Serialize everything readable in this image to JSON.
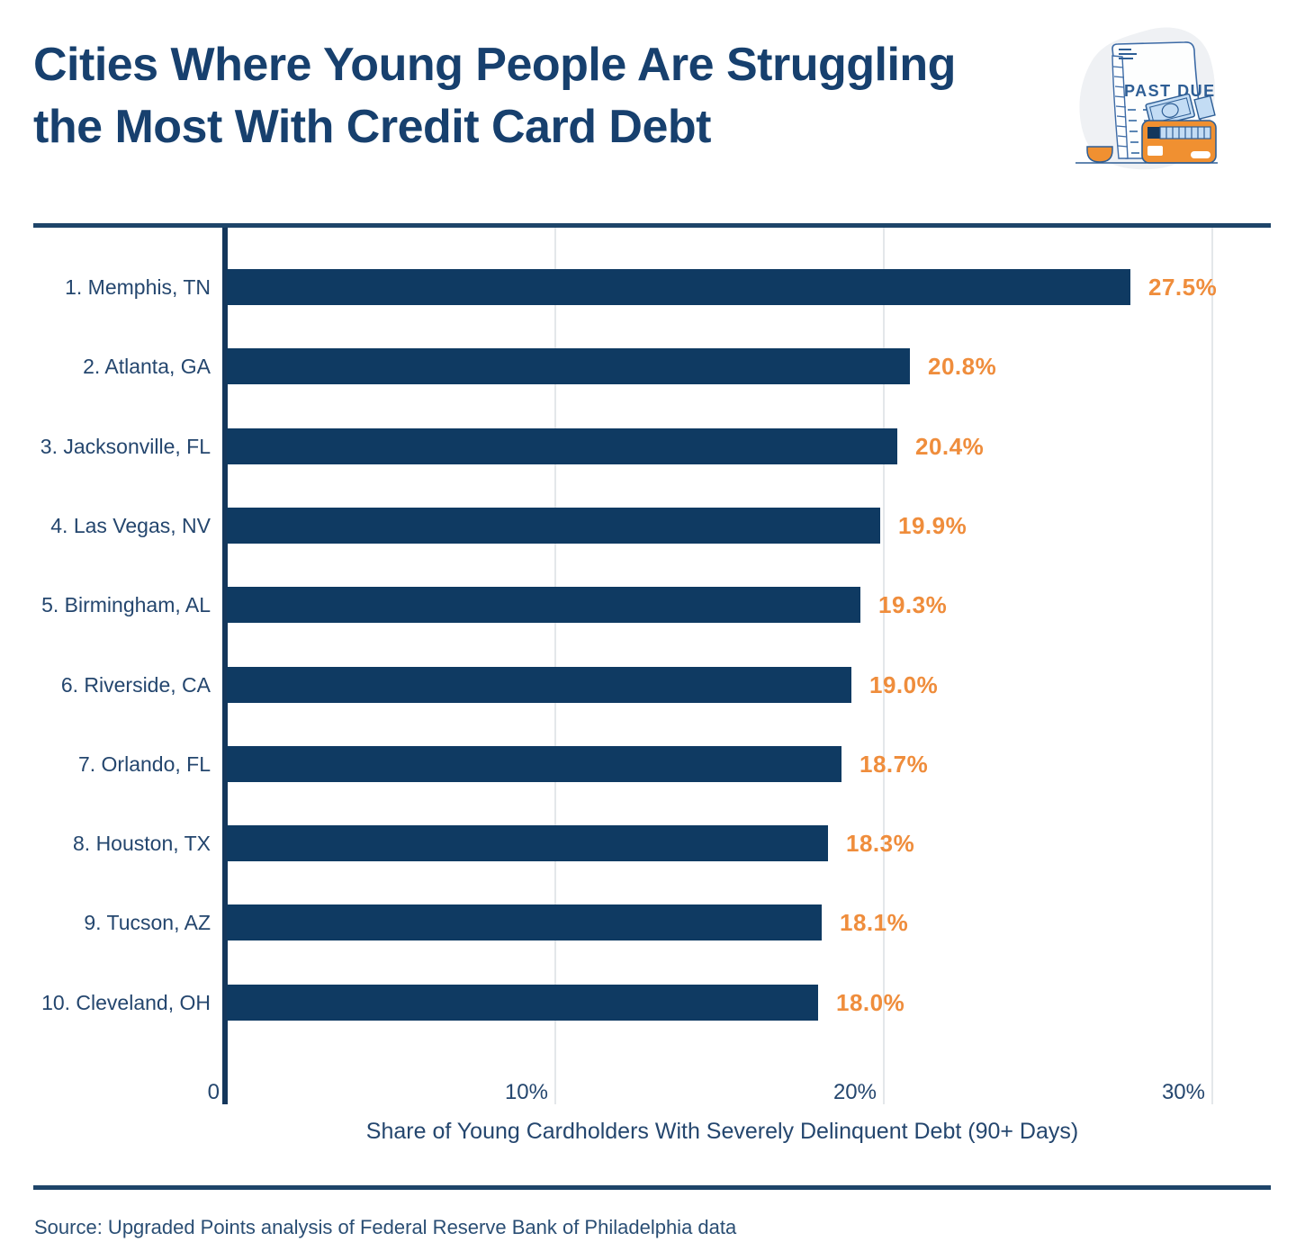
{
  "header": {
    "title_line1": "Cities Where Young People Are Struggling",
    "title_line2": "the Most With Credit Card Debt",
    "logo_text": "PAST DUE"
  },
  "chart_data": {
    "type": "bar",
    "orientation": "horizontal",
    "title": "Cities Where Young People Are Struggling the Most With Credit Card Debt",
    "categories": [
      "1. Memphis, TN",
      "2. Atlanta, GA",
      "3. Jacksonville, FL",
      "4. Las Vegas, NV",
      "5. Birmingham, AL",
      "6. Riverside, CA",
      "7. Orlando, FL",
      "8. Houston, TX",
      "9. Tucson, AZ",
      "10. Cleveland, OH"
    ],
    "values": [
      27.5,
      20.8,
      20.4,
      19.9,
      19.3,
      19.0,
      18.7,
      18.3,
      18.1,
      18.0
    ],
    "value_labels": [
      "27.5%",
      "20.8%",
      "20.4%",
      "19.9%",
      "19.3%",
      "19.0%",
      "18.7%",
      "18.3%",
      "18.1%",
      "18.0%"
    ],
    "xlabel": "Share of Young Cardholders With Severely Delinquent Debt (90+ Days)",
    "xlim": [
      0,
      30
    ],
    "xticks": [
      {
        "v": 0,
        "label": "0"
      },
      {
        "v": 10,
        "label": "10%"
      },
      {
        "v": 20,
        "label": "20%"
      },
      {
        "v": 30,
        "label": "30%"
      }
    ],
    "grid": true,
    "legend": null
  },
  "footer": {
    "source": "Source: Upgraded Points analysis of Federal Reserve Bank of Philadelphia data"
  },
  "colors": {
    "bar": "#0F3A62",
    "value_label": "#EF8D3C",
    "text_navy": "#24466E",
    "title_navy": "#17406E",
    "divider_navy": "#1E4569",
    "axis_navy": "#14375C",
    "gridline": "#E4E7EA",
    "logo_bg": "#EFF1F4",
    "logo_line": "#3D6BA6",
    "logo_text": "#2E5E95",
    "logo_orange": "#F09031",
    "logo_money": "#C3DCF4"
  }
}
